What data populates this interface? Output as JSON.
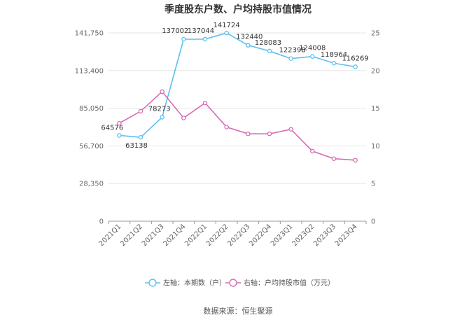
{
  "title": "季度股东户数、户均持股市值情况",
  "source": "数据来源：恒生聚源",
  "chart_data": {
    "type": "line",
    "categories": [
      "2021Q1",
      "2021Q2",
      "2021Q3",
      "2021Q4",
      "2022Q1",
      "2022Q2",
      "2022Q3",
      "2022Q4",
      "2023Q1",
      "2023Q2",
      "2023Q3",
      "2023Q4"
    ],
    "left_axis": {
      "ticks": [
        0,
        28350,
        56700,
        85050,
        113400,
        141750
      ],
      "tick_labels": [
        "0",
        "28,350",
        "56,700",
        "85,050",
        "113,400",
        "141,750"
      ],
      "ylim": [
        0,
        141750
      ]
    },
    "right_axis": {
      "ticks": [
        0,
        5,
        10,
        15,
        20,
        25
      ],
      "tick_labels": [
        "0",
        "5",
        "10",
        "15",
        "20",
        "25"
      ],
      "ylim": [
        0,
        25
      ]
    },
    "series": [
      {
        "name": "左轴：本期数（户）",
        "axis": "left",
        "color": "#5bc0f0",
        "values": [
          64576,
          63138,
          78273,
          137002,
          137044,
          141724,
          132440,
          128083,
          122398,
          124008,
          118964,
          116269
        ],
        "labels": [
          "64576",
          "63138",
          "78273",
          "137002",
          "137044",
          "141724",
          "132440",
          "128083",
          "122398",
          "124008",
          "118964",
          "116269"
        ]
      },
      {
        "name": "右轴：户均持股市值（万元）",
        "axis": "right",
        "color": "#d96bb5",
        "values": [
          13.0,
          14.6,
          17.2,
          13.7,
          15.7,
          12.5,
          11.6,
          11.6,
          12.2,
          9.3,
          8.3,
          8.1
        ]
      }
    ],
    "grid": true,
    "legend_position": "bottom"
  }
}
